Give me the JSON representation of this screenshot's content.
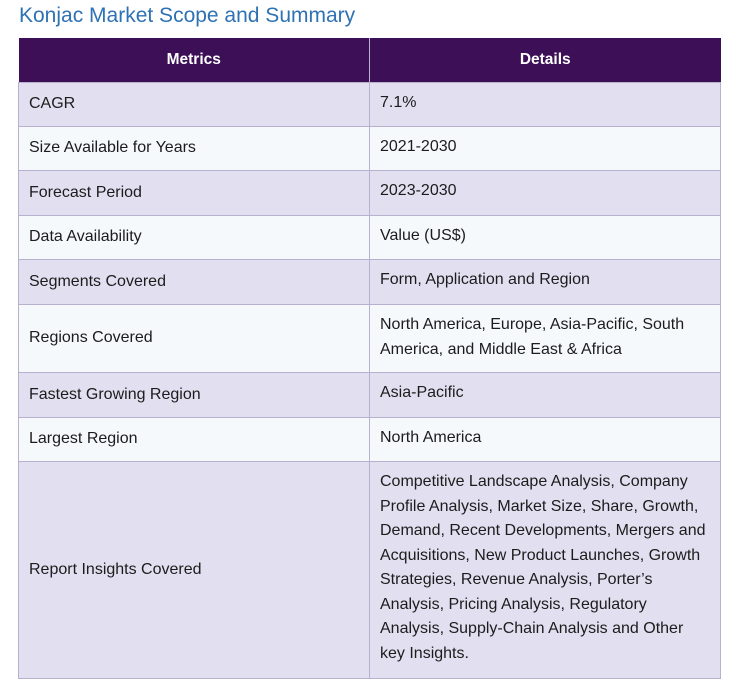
{
  "title": "Konjac Market Scope and Summary",
  "table": {
    "headers": {
      "metrics": "Metrics",
      "details": "Details"
    },
    "rows": [
      {
        "metric": "CAGR",
        "detail": "7.1%"
      },
      {
        "metric": "Size Available for Years",
        "detail": "2021-2030"
      },
      {
        "metric": "Forecast Period",
        "detail": "2023-2030"
      },
      {
        "metric": "Data Availability",
        "detail": "Value (US$)"
      },
      {
        "metric": "Segments Covered",
        "detail": "Form, Application and Region"
      },
      {
        "metric": "Regions Covered",
        "detail": "North America, Europe, Asia-Pacific, South America, and Middle East & Africa"
      },
      {
        "metric": "Fastest Growing Region",
        "detail": "Asia-Pacific"
      },
      {
        "metric": "Largest Region",
        "detail": "North America"
      },
      {
        "metric": "Report Insights Covered",
        "detail": "Competitive Landscape Analysis, Company Profile Analysis, Market Size, Share, Growth, Demand, Recent Developments, Mergers and Acquisitions, New Product Launches, Growth Strategies, Revenue Analysis, Porter’s Analysis, Pricing Analysis, Regulatory Analysis, Supply-Chain Analysis and Other key Insights."
      }
    ]
  }
}
